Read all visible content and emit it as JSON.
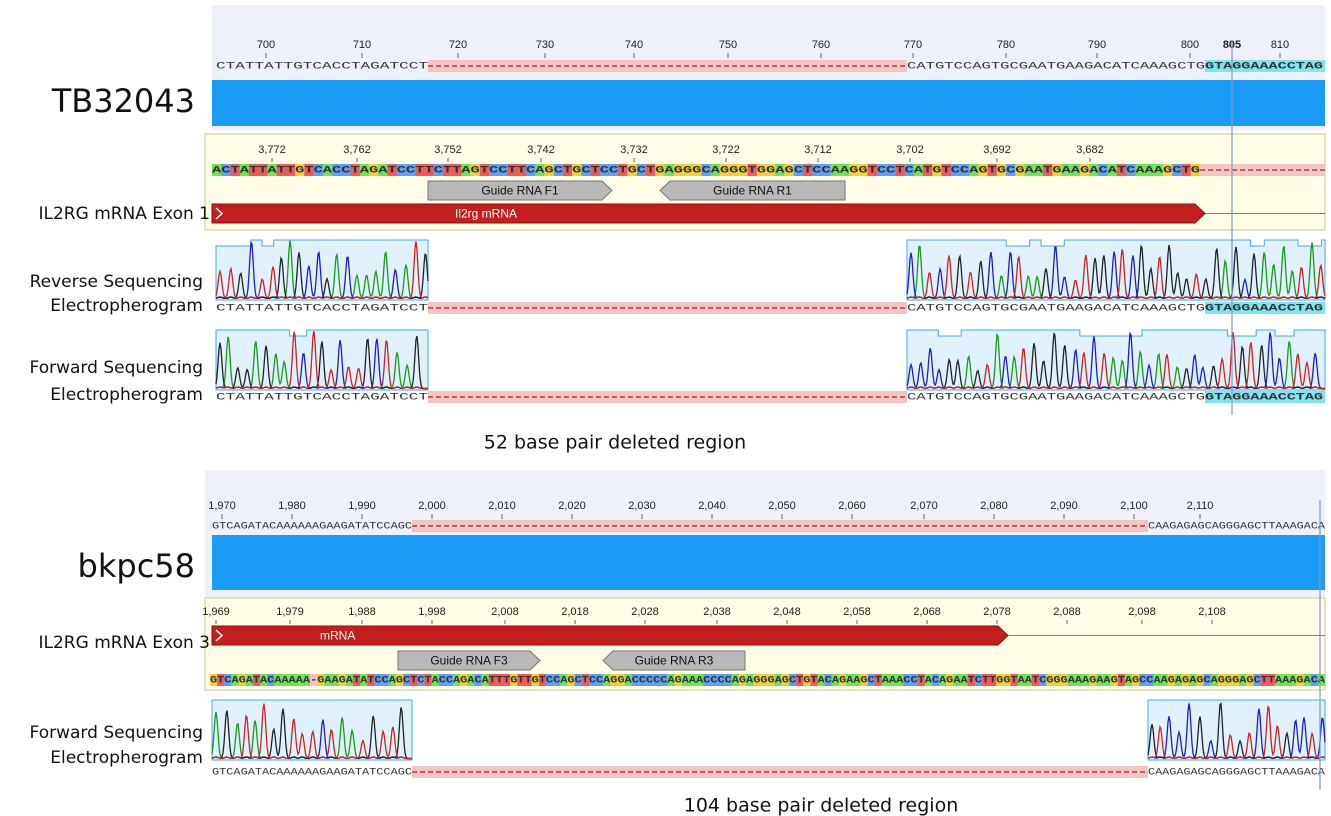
{
  "panels": [
    {
      "sample": "TB32043",
      "ruler_ticks": [
        "700",
        "710",
        "720",
        "730",
        "740",
        "750",
        "760",
        "770",
        "780",
        "790",
        "800",
        "805",
        "810"
      ],
      "aligned_left": "CTATTATTGTCACCTAGATCCT",
      "aligned_right": "CATGTCCAGTGCGAATGAAGACATCAAAGCTG",
      "aligned_highlight": "GTAGGAAACCTAG",
      "reference_ticks": [
        "3,772",
        "3,762",
        "3,752",
        "3,742",
        "3,732",
        "3,722",
        "3,712",
        "3,702",
        "3,692",
        "3,682"
      ],
      "reference_sequence": "ACTATTATTGTCACCTAGATCCTTCTTAGTCCTTCAGCTGCTCCTGCTGAGGGCAGGGTGGAGCTCCAAGGTCCTCATGTCCAGTGCGAATGAAGACATCAAAGCTG",
      "reference_label": "IL2RG mRNA Exon 1",
      "feature": "Il2rg mRNA",
      "guides": [
        "Guide RNA F1",
        "Guide RNA R1"
      ],
      "reads": [
        {
          "label": [
            "Reverse Sequencing",
            "Electropherogram"
          ]
        },
        {
          "label": [
            "Forward Sequencing",
            "Electropherogram"
          ]
        }
      ],
      "caption": "52 base pair deleted region"
    },
    {
      "sample": "bkpc58",
      "ruler_ticks": [
        "1,970",
        "1,980",
        "1,990",
        "2,000",
        "2,010",
        "2,020",
        "2,030",
        "2,040",
        "2,050",
        "2,060",
        "2,070",
        "2,080",
        "2,090",
        "2,100",
        "2,110"
      ],
      "aligned_left": "GTCAGATACAAAAAAGAAGATATCCAGC",
      "aligned_right": "CAAGAGAGCAGGGAGCTTAAAGACA",
      "reference_ticks": [
        "1,969",
        "1,979",
        "1,988",
        "1,998",
        "2,008",
        "2,018",
        "2,028",
        "2,038",
        "2,048",
        "2,058",
        "2,068",
        "2,078",
        "2,088",
        "2,098",
        "2,108"
      ],
      "reference_sequence": "GTCAGATACAAAAA-GAAGATATCCAGCTCTACCAGACATTTGTTGTCCAGCTCCAGGACCCCCAGAAACCCCAGAGGGAGCTGTACAGAAGCTAAACCTACAGAATCTTGGTAATCGGGAAAGAAGTAGCCAAGAGAGCAGGGAGCTTAAAGACA",
      "reference_label": "IL2RG mRNA Exon 3",
      "feature": "mRNA",
      "guides": [
        "Guide RNA F3",
        "Guide RNA R3"
      ],
      "reads": [
        {
          "label": [
            "Forward Sequencing",
            "Electropherogram"
          ]
        }
      ],
      "caption": "104 base pair deleted region"
    }
  ]
}
